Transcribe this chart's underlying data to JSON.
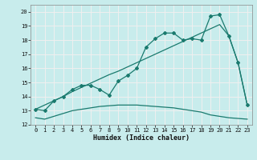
{
  "xlabel": "Humidex (Indice chaleur)",
  "bg_color": "#c8ecec",
  "grid_color": "#f0f0f0",
  "line_color": "#1a7a6e",
  "xlim": [
    -0.5,
    23.5
  ],
  "ylim": [
    12.0,
    20.5
  ],
  "xticks": [
    0,
    1,
    2,
    3,
    4,
    5,
    6,
    7,
    8,
    9,
    10,
    11,
    12,
    13,
    14,
    15,
    16,
    17,
    18,
    19,
    20,
    21,
    22,
    23
  ],
  "yticks": [
    12,
    13,
    14,
    15,
    16,
    17,
    18,
    19,
    20
  ],
  "lx1": [
    0,
    1,
    2,
    3,
    4,
    5,
    6,
    7,
    8,
    9,
    10,
    11,
    12,
    13,
    14,
    15,
    16,
    17,
    18,
    19,
    20,
    21,
    22,
    23
  ],
  "ly1": [
    13.1,
    13.4,
    13.7,
    14.0,
    14.35,
    14.65,
    14.95,
    15.25,
    15.55,
    15.8,
    16.1,
    16.4,
    16.7,
    17.0,
    17.3,
    17.6,
    17.9,
    18.2,
    18.5,
    18.8,
    19.1,
    18.3,
    16.4,
    13.4
  ],
  "lx2": [
    0,
    1,
    2,
    3,
    4,
    5,
    6,
    7,
    8,
    9,
    10,
    11,
    12,
    13,
    14,
    15,
    16,
    17,
    18,
    19,
    20,
    21,
    22,
    23
  ],
  "ly2": [
    13.1,
    13.0,
    13.7,
    14.0,
    14.5,
    14.8,
    14.8,
    14.5,
    14.1,
    15.1,
    15.5,
    16.0,
    17.5,
    18.1,
    18.5,
    18.5,
    18.0,
    18.1,
    18.0,
    19.7,
    19.8,
    18.3,
    16.4,
    13.4
  ],
  "lx3": [
    0,
    1,
    2,
    3,
    4,
    5,
    6,
    7,
    8,
    9,
    10,
    11,
    12,
    13,
    14,
    15,
    16,
    17,
    18,
    19,
    20,
    21,
    22,
    23
  ],
  "ly3": [
    12.5,
    12.4,
    12.6,
    12.8,
    13.0,
    13.1,
    13.2,
    13.3,
    13.35,
    13.4,
    13.4,
    13.4,
    13.35,
    13.3,
    13.25,
    13.2,
    13.1,
    13.0,
    12.9,
    12.7,
    12.6,
    12.5,
    12.45,
    12.4
  ]
}
